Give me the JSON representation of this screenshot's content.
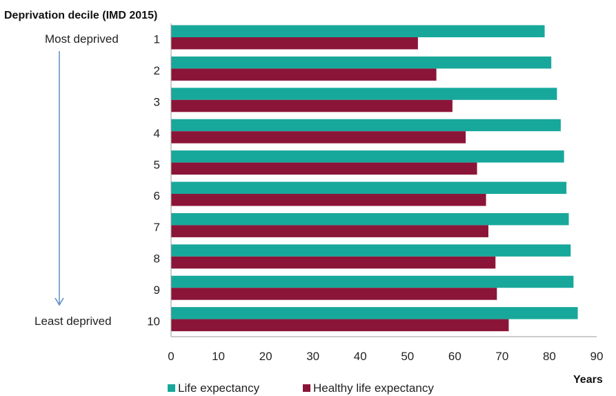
{
  "chart_data": {
    "type": "bar",
    "orientation": "horizontal",
    "title": "Deprivation decile (IMD 2015)",
    "xlabel": "Years",
    "ylabel": "",
    "xlim": [
      0,
      90
    ],
    "x_ticks": [
      0,
      10,
      20,
      30,
      40,
      50,
      60,
      70,
      80,
      90
    ],
    "categories": [
      "1",
      "2",
      "3",
      "4",
      "5",
      "6",
      "7",
      "8",
      "9",
      "10"
    ],
    "category_annotations": {
      "first": "Most deprived",
      "last": "Least deprived"
    },
    "series": [
      {
        "name": "Life expectancy",
        "color": "#17a89b",
        "values": [
          79.0,
          80.4,
          81.6,
          82.4,
          83.1,
          83.6,
          84.1,
          84.5,
          85.1,
          86.0
        ]
      },
      {
        "name": "Healthy life expectancy",
        "color": "#8b1538",
        "values": [
          52.2,
          56.1,
          59.5,
          62.3,
          64.7,
          66.6,
          67.1,
          68.6,
          68.9,
          71.4
        ]
      }
    ],
    "grid": false,
    "legend": "bottom"
  }
}
